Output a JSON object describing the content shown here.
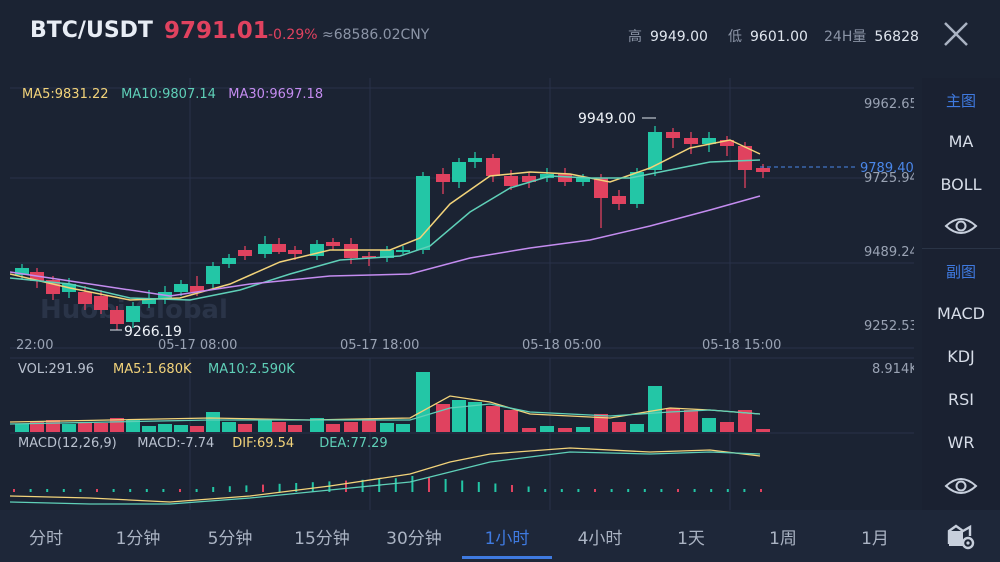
{
  "header": {
    "pair": "BTC/USDT",
    "price": "9791.01",
    "change_pct": "-0.29%",
    "cny_price": "≈68586.02CNY",
    "high_label": "高",
    "high_value": "9949.00",
    "low_label": "低",
    "low_value": "9601.00",
    "vol_label": "24H量",
    "vol_value": "56828"
  },
  "main_chart": {
    "ma_legend": [
      {
        "label": "MA5:9831.22",
        "color": "#f2d37a"
      },
      {
        "label": "MA10:9807.14",
        "color": "#5fd0b8"
      },
      {
        "label": "MA30:9697.18",
        "color": "#c48cf0"
      }
    ],
    "y_ticks": [
      "9962.65",
      "9725.94",
      "9489.24",
      "9252.53"
    ],
    "x_ticks": [
      "22:00",
      "05-17 08:00",
      "05-17 18:00",
      "05-18 05:00",
      "05-18 15:00"
    ],
    "current_price_tag": "9789.40",
    "max_label": "9949.00",
    "min_label": "9266.19",
    "watermark": "Huobi Global"
  },
  "volume_chart": {
    "legend": [
      {
        "label": "VOL:291.96",
        "color": "#b9c1cf"
      },
      {
        "label": "MA5:1.680K",
        "color": "#f2d37a"
      },
      {
        "label": "MA10:2.590K",
        "color": "#5fd0b8"
      }
    ],
    "max_label": "8.914K"
  },
  "macd_chart": {
    "legend": [
      {
        "label": "MACD(12,26,9)",
        "color": "#b9c1cf"
      },
      {
        "label": "MACD:-7.74",
        "color": "#b9c1cf"
      },
      {
        "label": "DIF:69.54",
        "color": "#f2d37a"
      },
      {
        "label": "DEA:77.29",
        "color": "#5fd0b8"
      }
    ]
  },
  "sidebar": {
    "main_title": "主图",
    "main_items": [
      "MA",
      "BOLL"
    ],
    "sub_title": "副图",
    "sub_items": [
      "MACD",
      "KDJ",
      "RSI",
      "WR"
    ]
  },
  "tabs": [
    "分时",
    "1分钟",
    "5分钟",
    "15分钟",
    "30分钟",
    "1小时",
    "4小时",
    "1天",
    "1周",
    "1月"
  ],
  "active_tab": "1小时",
  "colors": {
    "up": "#23c6a6",
    "down": "#e0425f",
    "accent": "#3f7ae0"
  }
}
